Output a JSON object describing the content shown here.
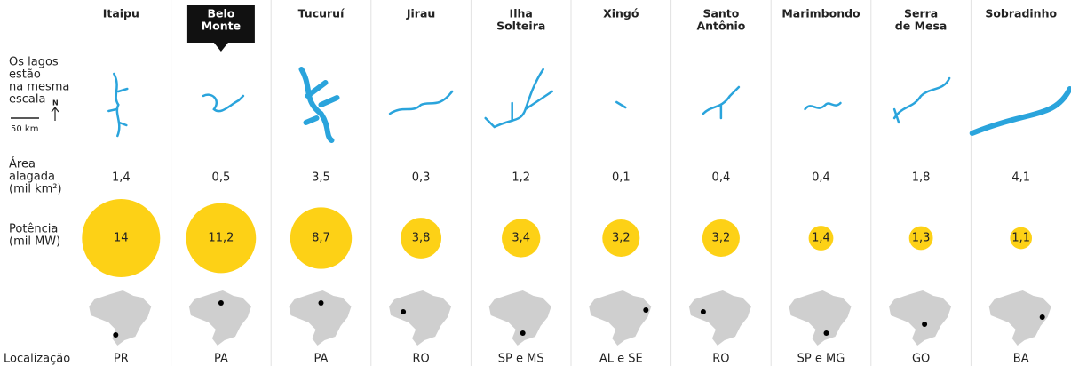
{
  "row_labels": {
    "lakes": [
      "Os lagos",
      "estão",
      "na mesma",
      "escala"
    ],
    "scale": "50 km",
    "north": "N",
    "area": [
      "Área",
      "alagada",
      "(mil km²)"
    ],
    "power": [
      "Potência",
      "(mil MW)"
    ],
    "location": "Localização"
  },
  "plants": [
    {
      "name": [
        "Itaipu"
      ],
      "area": "1,4",
      "power": {
        "value": 14,
        "label": "14"
      },
      "location": "PR"
    },
    {
      "name": [
        "Belo",
        "Monte"
      ],
      "area": "0,5",
      "power": {
        "value": 11.2,
        "label": "11,2"
      },
      "location": "PA"
    },
    {
      "name": [
        "Tucuruí"
      ],
      "area": "3,5",
      "power": {
        "value": 8.7,
        "label": "8,7"
      },
      "location": "PA"
    },
    {
      "name": [
        "Jirau"
      ],
      "area": "0,3",
      "power": {
        "value": 3.8,
        "label": "3,8"
      },
      "location": "RO"
    },
    {
      "name": [
        "Ilha",
        "Solteira"
      ],
      "area": "1,2",
      "power": {
        "value": 3.4,
        "label": "3,4"
      },
      "location": "SP e MS"
    },
    {
      "name": [
        "Xingó"
      ],
      "area": "0,1",
      "power": {
        "value": 3.2,
        "label": "3,2"
      },
      "location": "AL e SE"
    },
    {
      "name": [
        "Santo",
        "Antônio"
      ],
      "area": "0,4",
      "power": {
        "value": 3.2,
        "label": "3,2"
      },
      "location": "RO"
    },
    {
      "name": [
        "Marimbondo"
      ],
      "area": "0,4",
      "power": {
        "value": 1.4,
        "label": "1,4"
      },
      "location": "SP e MG"
    },
    {
      "name": [
        "Serra",
        "de Mesa"
      ],
      "area": "1,8",
      "power": {
        "value": 1.3,
        "label": "1,3"
      },
      "location": "GO"
    },
    {
      "name": [
        "Sobradinho"
      ],
      "area": "4,1",
      "power": {
        "value": 1.1,
        "label": "1,1"
      },
      "location": "BA"
    }
  ]
}
